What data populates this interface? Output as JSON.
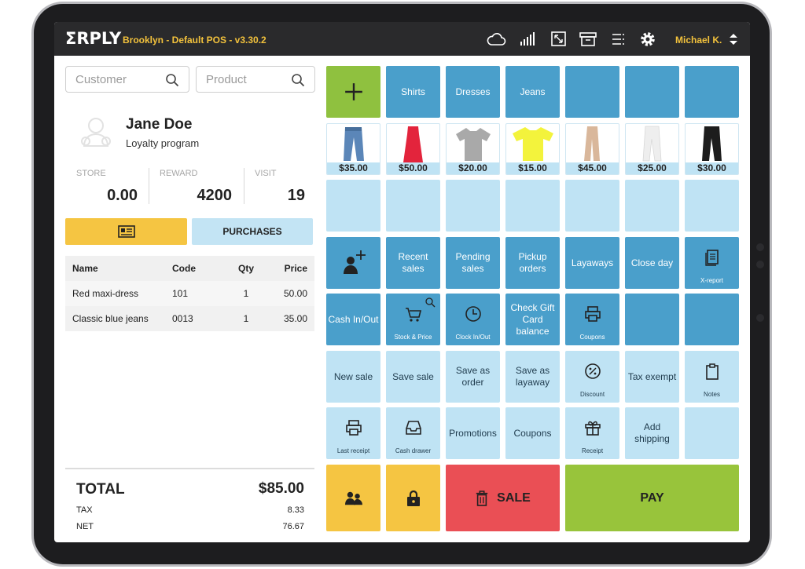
{
  "app": {
    "logo": "ΣRPLY",
    "store_title": "Brooklyn - Default POS - v3.30.2",
    "user_name": "Michael K."
  },
  "search": {
    "customer_placeholder": "Customer",
    "product_placeholder": "Product"
  },
  "customer": {
    "name": "Jane Doe",
    "program": "Loyalty program",
    "stats": [
      {
        "label": "STORE",
        "value": "0.00"
      },
      {
        "label": "REWARD",
        "value": "4200"
      },
      {
        "label": "VISIT",
        "value": "19"
      }
    ]
  },
  "buttons": {
    "purchases": "PURCHASES"
  },
  "cart": {
    "headers": {
      "name": "Name",
      "code": "Code",
      "qty": "Qty",
      "price": "Price"
    },
    "rows": [
      {
        "name": "Red maxi-dress",
        "code": "101",
        "qty": "1",
        "price": "50.00"
      },
      {
        "name": "Classic blue jeans",
        "code": "0013",
        "qty": "1",
        "price": "35.00"
      }
    ]
  },
  "totals": {
    "total_label": "TOTAL",
    "total_value": "$85.00",
    "tax_label": "TAX",
    "tax_value": "8.33",
    "net_label": "NET",
    "net_value": "76.67"
  },
  "categories": [
    "Shirts",
    "Dresses",
    "Jeans"
  ],
  "products": [
    {
      "price": "$35.00",
      "icon": "jeans-icon",
      "color": "#5b86b8"
    },
    {
      "price": "$50.00",
      "icon": "red-dress-icon",
      "color": "#e3243c"
    },
    {
      "price": "$20.00",
      "icon": "grey-shirt-icon",
      "color": "#a9a9a9"
    },
    {
      "price": "$15.00",
      "icon": "yellow-shirt-icon",
      "color": "#f3f33c"
    },
    {
      "price": "$45.00",
      "icon": "beige-pants-icon",
      "color": "#d9b79b"
    },
    {
      "price": "$25.00",
      "icon": "white-pants-icon",
      "color": "#e9e9e9"
    },
    {
      "price": "$30.00",
      "icon": "black-jeans-icon",
      "color": "#1d1d1d"
    }
  ],
  "actions": {
    "recent_sales": "Recent sales",
    "pending_sales": "Pending sales",
    "pickup_orders": "Pickup orders",
    "layaways": "Layaways",
    "close_day": "Close day",
    "x_report": "X-report",
    "cash_in_out": "Cash In/Out",
    "stock_price": "Stock & Price",
    "clock_in_out": "Clock In/Out",
    "check_gift_card": "Check Gift Card balance",
    "coupons_small": "Coupons",
    "new_sale": "New sale",
    "save_sale": "Save sale",
    "save_as_order": "Save as order",
    "save_as_layaway": "Save as layaway",
    "discount": "Discount",
    "tax_exempt": "Tax exempt",
    "notes": "Notes",
    "last_receipt": "Last receipt",
    "cash_drawer": "Cash drawer",
    "promotions": "Promotions",
    "coupons": "Coupons",
    "receipt": "Receipt",
    "add_shipping": "Add shipping",
    "sale": "SALE",
    "pay": "PAY"
  },
  "colors": {
    "tile_dark": "#4a9fcb",
    "tile_light": "#bfe3f4",
    "accent_yellow": "#f5c542",
    "add_green": "#8fc13f",
    "sale_red": "#ea4f55",
    "pay_green": "#98c43b"
  }
}
